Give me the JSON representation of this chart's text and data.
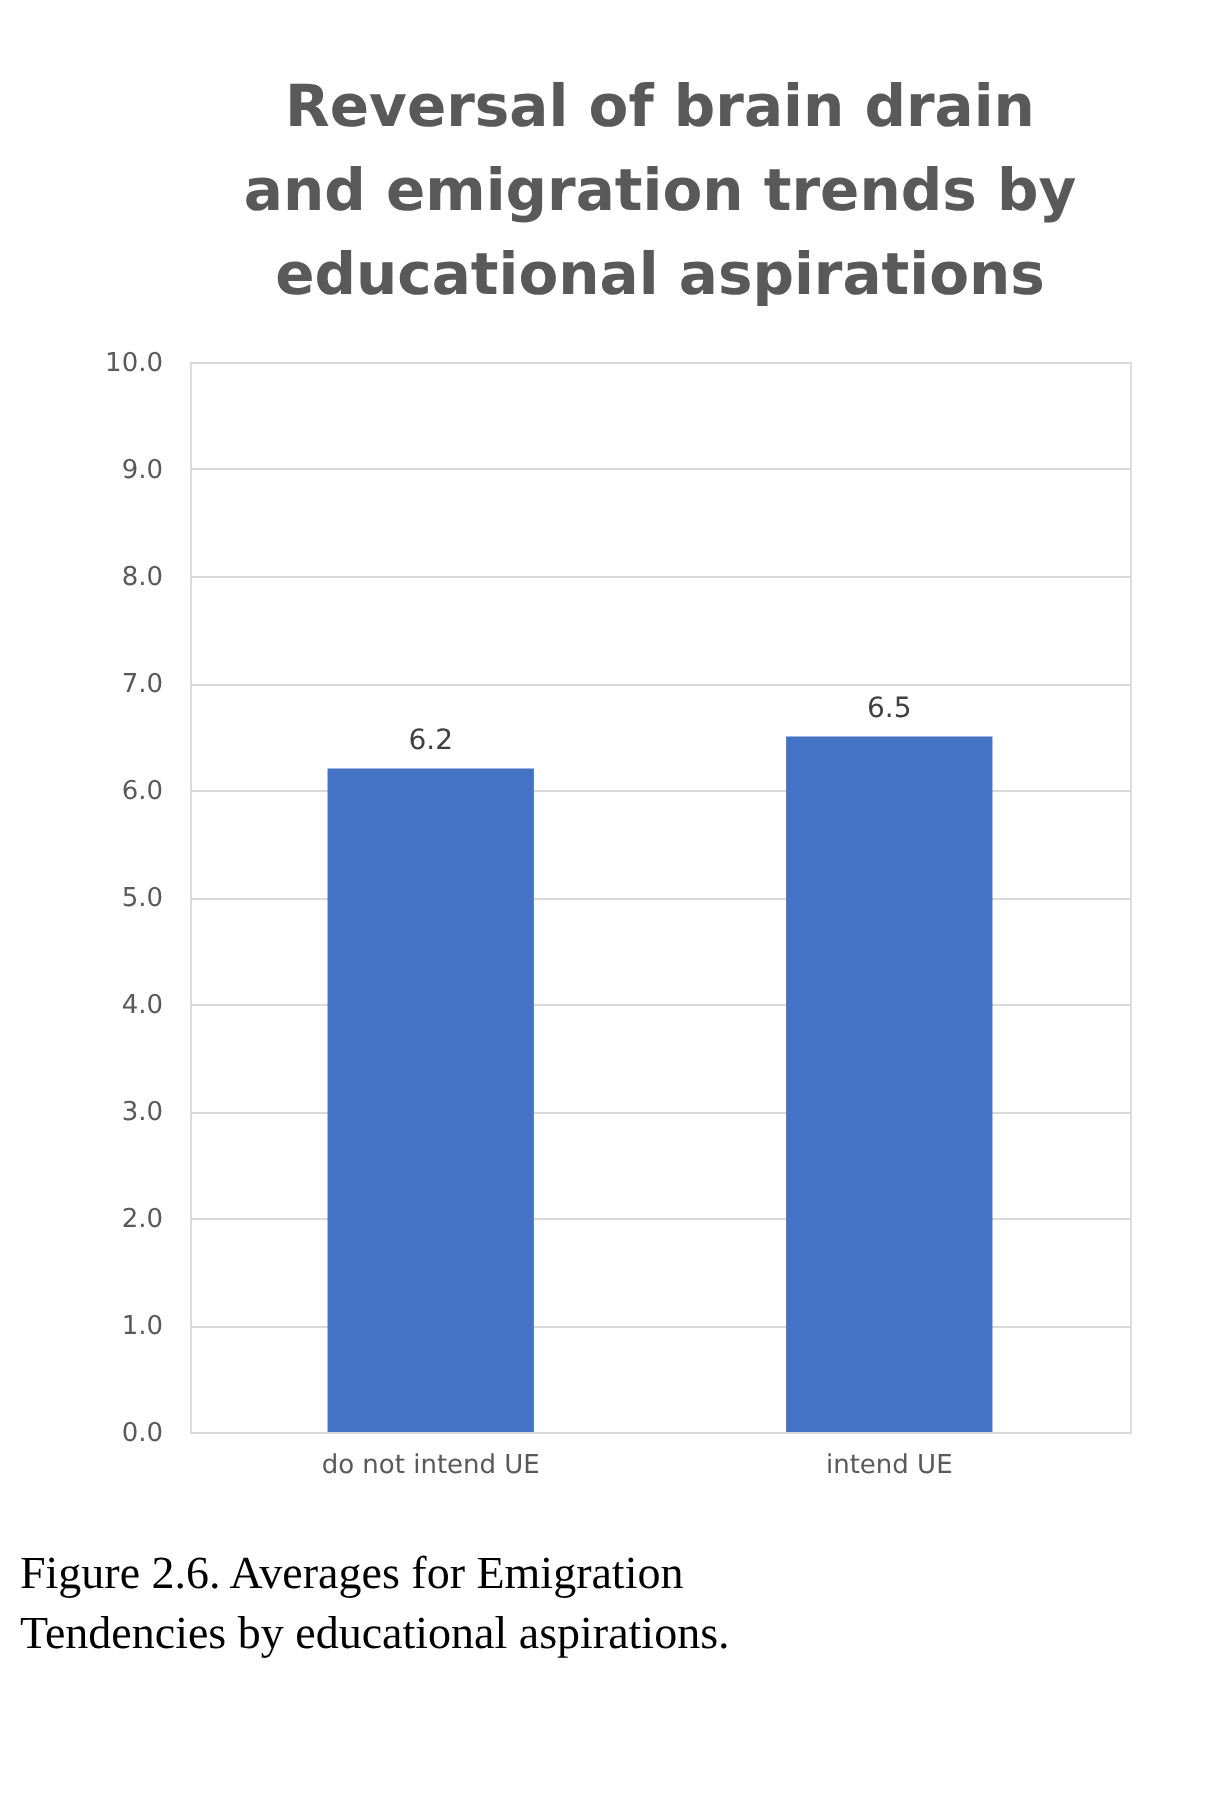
{
  "chart_data": {
    "type": "bar",
    "title": "Reversal of brain drain\nand emigration trends by\neducational aspirations",
    "categories": [
      "do not intend UE",
      "intend UE"
    ],
    "values": [
      6.2,
      6.5
    ],
    "color": "#4472c4",
    "data_labels": true,
    "ylim": [
      0,
      10
    ],
    "yticks": [
      {
        "value": 0,
        "label": "0.0"
      },
      {
        "value": 1,
        "label": "1.0"
      },
      {
        "value": 2,
        "label": "2.0"
      },
      {
        "value": 3,
        "label": "3.0"
      },
      {
        "value": 4,
        "label": "4.0"
      },
      {
        "value": 5,
        "label": "5.0"
      },
      {
        "value": 6,
        "label": "6.0"
      },
      {
        "value": 7,
        "label": "7.0"
      },
      {
        "value": 8,
        "label": "8.0"
      },
      {
        "value": 9,
        "label": "9.0"
      },
      {
        "value": 10,
        "label": "10.0"
      }
    ],
    "grid": "y",
    "annotations": [
      "Figure 2.6. Averages for Emigration\nTendencies by educational aspirations."
    ]
  }
}
